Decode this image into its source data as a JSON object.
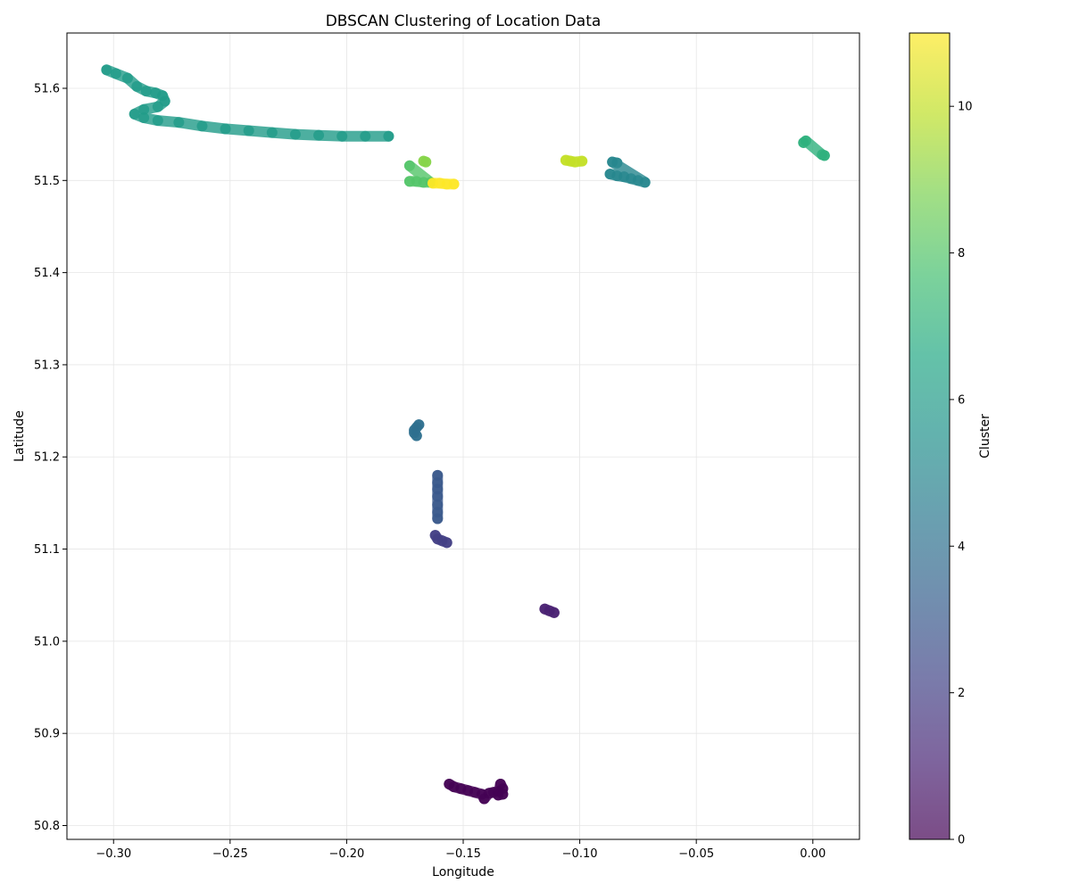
{
  "chart_data": {
    "type": "scatter",
    "title": "DBSCAN Clustering of Location Data",
    "xlabel": "Longitude",
    "ylabel": "Latitude",
    "xlim": [
      -0.32,
      0.02
    ],
    "ylim": [
      50.785,
      51.66
    ],
    "xticks": [
      -0.3,
      -0.25,
      -0.2,
      -0.15,
      -0.1,
      -0.05,
      0.0
    ],
    "xtick_labels": [
      "−0.30",
      "−0.25",
      "−0.20",
      "−0.15",
      "−0.10",
      "−0.05",
      "0.00"
    ],
    "yticks": [
      50.8,
      50.9,
      51.0,
      51.1,
      51.2,
      51.3,
      51.4,
      51.5,
      51.6
    ],
    "ytick_labels": [
      "50.8",
      "50.9",
      "51.0",
      "51.1",
      "51.2",
      "51.3",
      "51.4",
      "51.5",
      "51.6"
    ],
    "grid": true,
    "colormap": "viridis",
    "colorbar": {
      "label": "Cluster",
      "range": [
        0,
        11
      ],
      "ticks": [
        0,
        2,
        4,
        6,
        8,
        10
      ],
      "tick_labels": [
        "0",
        "2",
        "4",
        "6",
        "8",
        "10"
      ]
    },
    "clusters": [
      {
        "id": 0,
        "points": [
          [
            -0.156,
            50.845
          ],
          [
            -0.154,
            50.842
          ],
          [
            -0.151,
            50.84
          ],
          [
            -0.148,
            50.838
          ],
          [
            -0.145,
            50.836
          ],
          [
            -0.142,
            50.834
          ],
          [
            -0.141,
            50.829
          ],
          [
            -0.139,
            50.835
          ],
          [
            -0.137,
            50.836
          ],
          [
            -0.135,
            50.837
          ],
          [
            -0.133,
            50.84
          ],
          [
            -0.134,
            50.845
          ],
          [
            -0.135,
            50.833
          ],
          [
            -0.133,
            50.834
          ]
        ]
      },
      {
        "id": 1,
        "points": [
          [
            -0.115,
            51.035
          ],
          [
            -0.113,
            51.033
          ],
          [
            -0.111,
            51.031
          ]
        ]
      },
      {
        "id": 2,
        "points": [
          [
            -0.162,
            51.115
          ],
          [
            -0.161,
            51.111
          ],
          [
            -0.159,
            51.109
          ],
          [
            -0.157,
            51.107
          ]
        ]
      },
      {
        "id": 3,
        "points": [
          [
            -0.161,
            51.18
          ],
          [
            -0.161,
            51.172
          ],
          [
            -0.161,
            51.165
          ],
          [
            -0.161,
            51.157
          ],
          [
            -0.161,
            51.148
          ],
          [
            -0.161,
            51.14
          ],
          [
            -0.161,
            51.133
          ]
        ]
      },
      {
        "id": 4,
        "points": [
          [
            -0.169,
            51.235
          ],
          [
            -0.17,
            51.232
          ],
          [
            -0.171,
            51.229
          ],
          [
            -0.171,
            51.226
          ],
          [
            -0.17,
            51.223
          ]
        ]
      },
      {
        "id": 5,
        "points": [
          [
            -0.087,
            51.507
          ],
          [
            -0.084,
            51.505
          ],
          [
            -0.081,
            51.504
          ],
          [
            -0.078,
            51.502
          ],
          [
            -0.075,
            51.5
          ],
          [
            -0.072,
            51.498
          ],
          [
            -0.086,
            51.52
          ],
          [
            -0.084,
            51.519
          ]
        ]
      },
      {
        "id": 6,
        "points": [
          [
            -0.303,
            51.62
          ],
          [
            -0.299,
            51.616
          ],
          [
            -0.294,
            51.611
          ],
          [
            -0.29,
            51.602
          ],
          [
            -0.286,
            51.597
          ],
          [
            -0.282,
            51.595
          ],
          [
            -0.279,
            51.592
          ],
          [
            -0.278,
            51.586
          ],
          [
            -0.281,
            51.58
          ],
          [
            -0.287,
            51.577
          ],
          [
            -0.291,
            51.572
          ],
          [
            -0.287,
            51.568
          ],
          [
            -0.281,
            51.565
          ],
          [
            -0.272,
            51.563
          ],
          [
            -0.262,
            51.559
          ],
          [
            -0.252,
            51.556
          ],
          [
            -0.242,
            51.554
          ],
          [
            -0.232,
            51.552
          ],
          [
            -0.222,
            51.55
          ],
          [
            -0.212,
            51.549
          ],
          [
            -0.202,
            51.548
          ],
          [
            -0.192,
            51.548
          ],
          [
            -0.182,
            51.548
          ]
        ]
      },
      {
        "id": 7,
        "points": [
          [
            -0.004,
            51.541
          ],
          [
            -0.003,
            51.543
          ],
          [
            0.004,
            51.528
          ],
          [
            0.005,
            51.527
          ]
        ]
      },
      {
        "id": 8,
        "points": [
          [
            -0.173,
            51.499
          ],
          [
            -0.17,
            51.499
          ],
          [
            -0.167,
            51.498
          ],
          [
            -0.164,
            51.498
          ],
          [
            -0.173,
            51.516
          ]
        ]
      },
      {
        "id": 9,
        "points": [
          [
            -0.167,
            51.521
          ],
          [
            -0.166,
            51.52
          ]
        ]
      },
      {
        "id": 10,
        "points": [
          [
            -0.106,
            51.522
          ],
          [
            -0.104,
            51.521
          ],
          [
            -0.102,
            51.52
          ],
          [
            -0.099,
            51.521
          ]
        ]
      },
      {
        "id": 11,
        "points": [
          [
            -0.163,
            51.497
          ],
          [
            -0.16,
            51.497
          ],
          [
            -0.157,
            51.496
          ],
          [
            -0.154,
            51.496
          ]
        ]
      }
    ]
  }
}
